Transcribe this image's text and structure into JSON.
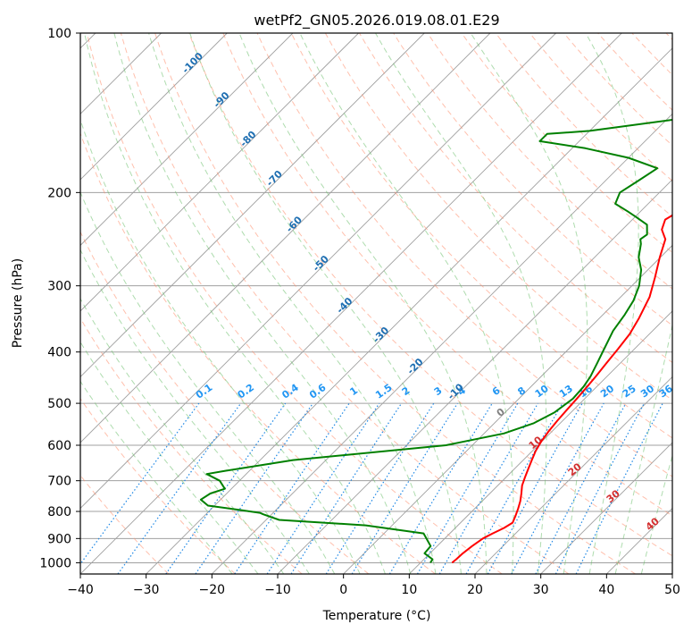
{
  "chart_data": {
    "type": "line",
    "title": "wetPf2_GN05.2026.019.08.01.E29",
    "xlabel": "Temperature (°C)",
    "ylabel": "Pressure (hPa)",
    "x_scale": "linear",
    "y_scale": "log",
    "xlim": [
      -40,
      50
    ],
    "ylim": [
      1050,
      100
    ],
    "x_ticks": [
      -40,
      -30,
      -20,
      -10,
      0,
      10,
      20,
      30,
      40,
      50
    ],
    "y_ticks": [
      100,
      200,
      300,
      400,
      500,
      600,
      700,
      800,
      900,
      1000
    ],
    "grid": true,
    "skew_note": "skew-T log-p diagram",
    "colors": {
      "temperature": "#ff0000",
      "dewpoint": "#008000",
      "isotherm": "#a0a0a0",
      "dry_adiabat": "#ff8c69",
      "moist_adiabat": "#6cbf6c",
      "mixing_ratio": "#1e88e5",
      "isotherm_label": "#1f6fb2",
      "mixing_label": "#2196f3",
      "adiabat_label": "#d32f2f",
      "zero_label": "#808080"
    },
    "series": [
      {
        "key": "temperature",
        "x": [
          14.8,
          14.9,
          15.0,
          15.3,
          15.8,
          16.5,
          17.4,
          17.9,
          17.3,
          16.6,
          15.8,
          14.8,
          13.7,
          12.9,
          12.1,
          11.3,
          10.5,
          9.9,
          9.5,
          9.2,
          9.0,
          8.8,
          8.6,
          8.3,
          7.9,
          7.5,
          7.0,
          6.0,
          4.4,
          2.3,
          -0.1,
          -2.0,
          -4.0,
          -5.0,
          -4.5,
          -1.5,
          2.0,
          7.0,
          12.5,
          16.0,
          17.0,
          17.0,
          16.0,
          16.0,
          17.0,
          18.0,
          19.5,
          21.0,
          22.5,
          23.0
        ],
        "y": [
          1000,
          985,
          960,
          930,
          900,
          880,
          860,
          840,
          815,
          790,
          765,
          740,
          715,
          690,
          665,
          640,
          615,
          590,
          565,
          540,
          515,
          490,
          470,
          445,
          420,
          395,
          370,
          345,
          315,
          290,
          265,
          245,
          235,
          225,
          220,
          212,
          205,
          195,
          185,
          175,
          165,
          155,
          145,
          135,
          125,
          118,
          112,
          107,
          103,
          100
        ]
      },
      {
        "key": "dewpoint",
        "x": [
          11.5,
          11.3,
          9.2,
          9.0,
          6.0,
          -4.0,
          -18.0,
          -21.3,
          -22.0,
          -25.5,
          -31.0,
          -33.0,
          -32.5,
          -31.0,
          -33.0,
          -36.0,
          -33.5,
          -25.0,
          -4.0,
          3.0,
          6.0,
          7.5,
          8.2,
          8.0,
          7.5,
          6.5,
          5.4,
          4.0,
          3.3,
          2.5,
          1.1,
          -1.0,
          -3.3,
          -5.0,
          -5.8,
          -5.5,
          -7.0,
          -10.0,
          -12.0,
          -15.0,
          -16.0,
          -15.0,
          -14.0,
          -20.0,
          -28.0,
          -36.0,
          -36.0,
          -30.0,
          -10.0,
          -4.0,
          0.0,
          4.0
        ],
        "y": [
          1000,
          985,
          960,
          930,
          880,
          850,
          830,
          810,
          805,
          795,
          780,
          760,
          740,
          725,
          700,
          680,
          670,
          640,
          600,
          570,
          545,
          520,
          490,
          465,
          445,
          420,
          395,
          365,
          340,
          320,
          300,
          280,
          265,
          250,
          245,
          240,
          230,
          222,
          217,
          210,
          200,
          190,
          180,
          172,
          165,
          160,
          155,
          153,
          140,
          125,
          110,
          100
        ]
      }
    ],
    "isotherm_labels": [
      "-100",
      "-90",
      "-80",
      "-70",
      "-60",
      "-50",
      "-40",
      "-30",
      "-20",
      "-10"
    ],
    "mixing_ratio_labels": [
      "0.1",
      "0.2",
      "0.4",
      "0.6",
      "1",
      "1.5",
      "2",
      "3",
      "4",
      "6",
      "8",
      "10",
      "13",
      "16",
      "20",
      "25",
      "30",
      "36"
    ],
    "moist_adiabat_labels": [
      "0",
      "10",
      "20",
      "30",
      "40"
    ]
  }
}
